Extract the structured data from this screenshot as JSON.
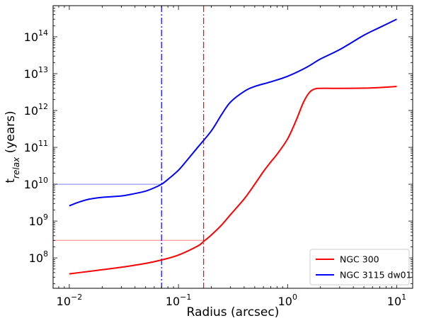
{
  "chart_data": {
    "type": "line",
    "xscale": "log",
    "yscale": "log",
    "xlim": [
      0.0071,
      14
    ],
    "ylim": [
      15000000,
      700000000000000
    ],
    "xlabel": "Radius (arcsec)",
    "ylabel_main": "t",
    "ylabel_sub": "relax",
    "ylabel_rest": " (years)",
    "x_ticks": [
      {
        "value": 0.01,
        "base": "10",
        "exp": "−2"
      },
      {
        "value": 0.1,
        "base": "10",
        "exp": "−1"
      },
      {
        "value": 1,
        "base": "10",
        "exp": "0"
      },
      {
        "value": 10,
        "base": "10",
        "exp": "1"
      }
    ],
    "y_ticks": [
      {
        "value": 100000000,
        "base": "10",
        "exp": "8"
      },
      {
        "value": 1000000000,
        "base": "10",
        "exp": "9"
      },
      {
        "value": 10000000000,
        "base": "10",
        "exp": "10"
      },
      {
        "value": 100000000000,
        "base": "10",
        "exp": "11"
      },
      {
        "value": 1000000000000,
        "base": "10",
        "exp": "12"
      },
      {
        "value": 10000000000000,
        "base": "10",
        "exp": "13"
      },
      {
        "value": 100000000000000,
        "base": "10",
        "exp": "14"
      }
    ],
    "series": [
      {
        "name": "NGC 300",
        "color": "#ff0000",
        "x": [
          0.01,
          0.015,
          0.02,
          0.03,
          0.05,
          0.07,
          0.1,
          0.15,
          0.17,
          0.2,
          0.25,
          0.3,
          0.4,
          0.5,
          0.6,
          0.7,
          0.8,
          1.0,
          1.2,
          1.4,
          1.6,
          1.8,
          2.0,
          2.5,
          3,
          5,
          7,
          10
        ],
        "y": [
          37000000,
          43000000,
          48000000,
          56000000,
          71000000,
          88000000,
          120000000,
          210000000,
          280000000,
          420000000,
          800000000,
          1500000000,
          4000000000,
          10000000000,
          22000000000,
          40000000000,
          65000000000,
          170000000000,
          550000000000,
          1700000000000,
          3200000000000,
          3900000000000,
          4000000000000,
          4000000000000,
          4000000000000,
          4050000000000,
          4200000000000,
          4500000000000
        ]
      },
      {
        "name": "NGC 3115 dw01",
        "color": "#0000ff",
        "x": [
          0.01,
          0.012,
          0.015,
          0.02,
          0.03,
          0.04,
          0.05,
          0.06,
          0.07,
          0.08,
          0.1,
          0.12,
          0.15,
          0.2,
          0.25,
          0.3,
          0.4,
          0.5,
          0.7,
          1.0,
          1.5,
          2,
          3,
          5,
          7,
          10
        ],
        "y": [
          2600000000,
          3200000000,
          3900000000,
          4400000000,
          4800000000,
          5600000000,
          6500000000,
          8000000000,
          10000000000,
          13500000000,
          24000000000,
          45000000000,
          100000000000,
          280000000000,
          800000000000,
          1700000000000,
          3300000000000,
          4500000000000,
          6000000000000,
          8500000000000,
          15000000000000,
          25000000000000,
          45000000000000,
          110000000000000,
          180000000000000,
          300000000000000
        ]
      }
    ],
    "vlines": [
      {
        "x": 0.07,
        "color": "#0000ff",
        "style": "dashdot"
      },
      {
        "x": 0.17,
        "color": "#ff0000",
        "style": "dashdot"
      }
    ],
    "hlines": [
      {
        "y": 10000000000,
        "x_end": 0.07,
        "color": "#0000ff"
      },
      {
        "y": 300000000,
        "x_end": 0.17,
        "color": "#ff0000"
      }
    ],
    "legend_position": "lower-right",
    "grid": false
  }
}
